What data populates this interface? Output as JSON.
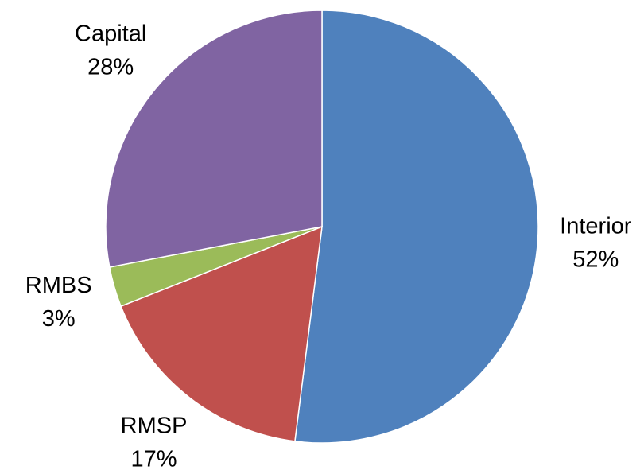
{
  "chart_data": {
    "type": "pie",
    "categories": [
      "Interior",
      "RMSP",
      "RMBS",
      "Capital"
    ],
    "values": [
      52,
      17,
      3,
      28
    ],
    "value_labels": [
      "52%",
      "17%",
      "3%",
      "28%"
    ],
    "colors": [
      "#4f81bd",
      "#c0504d",
      "#9bbb59",
      "#8064a2"
    ]
  }
}
